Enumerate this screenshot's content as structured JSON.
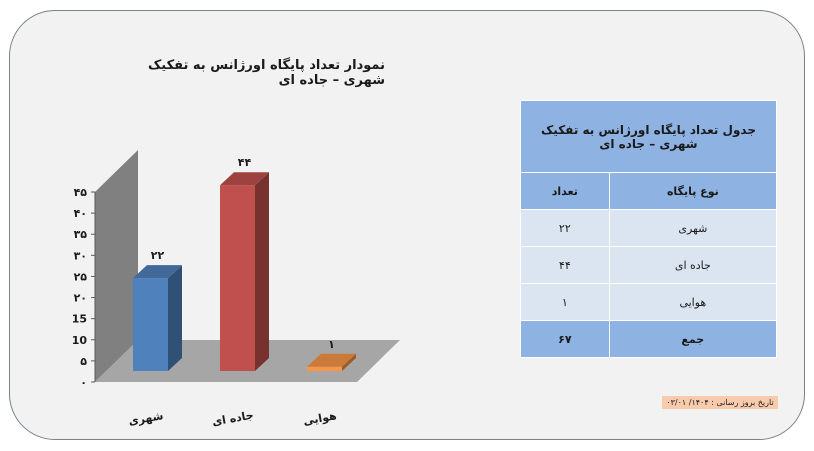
{
  "chart_data": {
    "type": "bar",
    "title": "نمودار تعداد پایگاه اورژانس به تفکیک شهری – جاده ای",
    "categories": [
      "شهری",
      "جاده ای",
      "هوایی"
    ],
    "values": [
      22,
      44,
      1
    ],
    "data_labels": [
      "۲۲",
      "۴۴",
      "۱"
    ],
    "colors": [
      "#4f81bd",
      "#c0504d",
      "#f79646"
    ],
    "ylim": [
      0,
      45
    ],
    "yticks": [
      0,
      5,
      10,
      15,
      20,
      25,
      30,
      35,
      40,
      45
    ],
    "ytick_labels": [
      "۰",
      "۵",
      "10",
      "15",
      "۲۰",
      "۲۵",
      "۳۰",
      "۳۵",
      "۴۰",
      "۴۵"
    ],
    "grid": false,
    "legend": "none",
    "xlabel": "",
    "ylabel": ""
  },
  "table": {
    "caption": "جدول تعداد پایگاه اورژانس به تفکیک شهری – جاده ای",
    "headers": [
      "نوع پایگاه",
      "تعداد"
    ],
    "rows": [
      {
        "type": "شهری",
        "count": "۲۲"
      },
      {
        "type": "جاده ای",
        "count": "۴۴"
      },
      {
        "type": "هوایی",
        "count": "۱"
      }
    ],
    "total": {
      "label": "جمع",
      "count": "۶۷"
    }
  },
  "update_date": "تاریخ بروز رسانی : ۱۴۰۴/ ۰۳/۰۱"
}
